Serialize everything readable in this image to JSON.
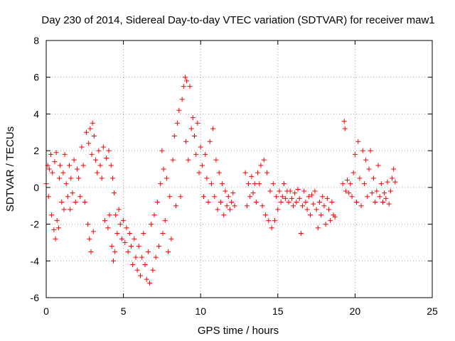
{
  "chart_data": {
    "type": "scatter",
    "title": "Day 230 of 2014, Sidereal Day-to-day VTEC variation (SDTVAR) for receiver maw1",
    "xlabel": "GPS time / hours",
    "ylabel": "SDTVAR / TECUs",
    "xlim": [
      0,
      25
    ],
    "ylim": [
      -6,
      8
    ],
    "xticks": [
      0,
      5,
      10,
      15,
      20,
      25
    ],
    "yticks": [
      -6,
      -4,
      -2,
      0,
      2,
      4,
      6,
      8
    ],
    "grid": true,
    "marker": "+",
    "color": "#ff0000",
    "series": [
      {
        "name": "maw1",
        "points": [
          [
            0.0,
            0.2
          ],
          [
            0.1,
            1.2
          ],
          [
            0.15,
            -0.5
          ],
          [
            0.2,
            1.0
          ],
          [
            0.3,
            1.8
          ],
          [
            0.35,
            -1.5
          ],
          [
            0.4,
            0.8
          ],
          [
            0.5,
            -2.3
          ],
          [
            0.55,
            1.4
          ],
          [
            0.6,
            -2.8
          ],
          [
            0.65,
            1.9
          ],
          [
            0.7,
            -1.8
          ],
          [
            0.8,
            -2.2
          ],
          [
            0.85,
            0.5
          ],
          [
            0.9,
            1.2
          ],
          [
            1.0,
            -0.8
          ],
          [
            1.1,
            0.8
          ],
          [
            1.15,
            -1.2
          ],
          [
            1.2,
            1.8
          ],
          [
            1.3,
            0.2
          ],
          [
            1.4,
            -0.5
          ],
          [
            1.5,
            1.2
          ],
          [
            1.55,
            -1.2
          ],
          [
            1.6,
            0.5
          ],
          [
            1.7,
            -0.3
          ],
          [
            1.8,
            1.5
          ],
          [
            1.9,
            -0.8
          ],
          [
            2.0,
            1.0
          ],
          [
            2.1,
            0.5
          ],
          [
            2.2,
            -0.5
          ],
          [
            2.3,
            2.2
          ],
          [
            2.4,
            1.2
          ],
          [
            2.5,
            -0.8
          ],
          [
            2.6,
            3.0
          ],
          [
            2.7,
            -2.0
          ],
          [
            2.75,
            2.4
          ],
          [
            2.8,
            -2.8
          ],
          [
            2.85,
            3.2
          ],
          [
            2.9,
            -3.5
          ],
          [
            2.95,
            1.8
          ],
          [
            3.0,
            3.5
          ],
          [
            3.05,
            -2.4
          ],
          [
            3.1,
            2.8
          ],
          [
            3.2,
            1.5
          ],
          [
            3.3,
            0.8
          ],
          [
            3.4,
            2.0
          ],
          [
            3.5,
            1.2
          ],
          [
            3.6,
            0.5
          ],
          [
            3.7,
            2.2
          ],
          [
            3.8,
            -1.8
          ],
          [
            3.9,
            1.6
          ],
          [
            4.0,
            -2.2
          ],
          [
            4.05,
            2.0
          ],
          [
            4.1,
            -1.5
          ],
          [
            4.2,
            1.2
          ],
          [
            4.25,
            -3.2
          ],
          [
            4.3,
            0.5
          ],
          [
            4.35,
            -4.0
          ],
          [
            4.4,
            -0.3
          ],
          [
            4.45,
            -3.5
          ],
          [
            4.5,
            -1.5
          ],
          [
            4.6,
            -2.5
          ],
          [
            4.7,
            -1.2
          ],
          [
            4.8,
            -2.0
          ],
          [
            4.9,
            -2.8
          ],
          [
            5.0,
            -1.8
          ],
          [
            5.1,
            -3.0
          ],
          [
            5.2,
            -2.2
          ],
          [
            5.3,
            -3.5
          ],
          [
            5.4,
            -2.5
          ],
          [
            5.5,
            -3.2
          ],
          [
            5.6,
            -4.2
          ],
          [
            5.7,
            -2.8
          ],
          [
            5.8,
            -3.8
          ],
          [
            5.9,
            -4.5
          ],
          [
            6.0,
            -3.2
          ],
          [
            6.1,
            -4.8
          ],
          [
            6.2,
            -3.8
          ],
          [
            6.3,
            -2.5
          ],
          [
            6.4,
            -4.2
          ],
          [
            6.5,
            -5.0
          ],
          [
            6.6,
            -3.5
          ],
          [
            6.7,
            -5.2
          ],
          [
            6.8,
            -2.0
          ],
          [
            6.9,
            -4.5
          ],
          [
            7.0,
            -1.5
          ],
          [
            7.1,
            -3.8
          ],
          [
            7.2,
            -0.8
          ],
          [
            7.3,
            -3.2
          ],
          [
            7.4,
            0.2
          ],
          [
            7.5,
            2.0
          ],
          [
            7.55,
            -2.5
          ],
          [
            7.6,
            1.0
          ],
          [
            7.7,
            -1.8
          ],
          [
            7.8,
            0.5
          ],
          [
            7.9,
            -3.5
          ],
          [
            8.0,
            -0.5
          ],
          [
            8.1,
            -2.8
          ],
          [
            8.2,
            1.5
          ],
          [
            8.3,
            2.8
          ],
          [
            8.4,
            -1.0
          ],
          [
            8.5,
            3.5
          ],
          [
            8.6,
            4.2
          ],
          [
            8.7,
            -0.5
          ],
          [
            8.8,
            4.8
          ],
          [
            8.9,
            5.5
          ],
          [
            9.0,
            6.0
          ],
          [
            9.05,
            2.5
          ],
          [
            9.1,
            5.8
          ],
          [
            9.2,
            1.5
          ],
          [
            9.3,
            5.5
          ],
          [
            9.4,
            3.2
          ],
          [
            9.5,
            3.8
          ],
          [
            9.6,
            2.8
          ],
          [
            9.7,
            1.8
          ],
          [
            9.8,
            3.5
          ],
          [
            9.9,
            0.8
          ],
          [
            10.0,
            2.2
          ],
          [
            10.1,
            1.2
          ],
          [
            10.2,
            -0.5
          ],
          [
            10.3,
            1.8
          ],
          [
            10.4,
            0.5
          ],
          [
            10.5,
            -0.8
          ],
          [
            10.6,
            2.5
          ],
          [
            10.7,
            0.2
          ],
          [
            10.8,
            3.2
          ],
          [
            10.9,
            -0.5
          ],
          [
            11.0,
            1.5
          ],
          [
            11.1,
            -1.2
          ],
          [
            11.2,
            0.8
          ],
          [
            11.3,
            -0.8
          ],
          [
            11.4,
            0.2
          ],
          [
            11.5,
            -1.5
          ],
          [
            11.6,
            -0.2
          ],
          [
            11.7,
            -1.0
          ],
          [
            11.8,
            -0.5
          ],
          [
            11.9,
            -1.2
          ],
          [
            12.0,
            -0.8
          ],
          [
            12.1,
            -0.3
          ],
          [
            12.2,
            -1.0
          ],
          [
            12.9,
            0.8
          ],
          [
            13.0,
            -1.0
          ],
          [
            13.1,
            0.2
          ],
          [
            13.2,
            -0.5
          ],
          [
            13.3,
            0.6
          ],
          [
            13.4,
            -0.3
          ],
          [
            13.5,
            0.2
          ],
          [
            13.6,
            -0.8
          ],
          [
            13.7,
            0.8
          ],
          [
            13.8,
            0.2
          ],
          [
            13.9,
            1.2
          ],
          [
            14.0,
            -1.0
          ],
          [
            14.1,
            1.5
          ],
          [
            14.2,
            -1.5
          ],
          [
            14.3,
            0.8
          ],
          [
            14.4,
            -1.8
          ],
          [
            14.5,
            -0.2
          ],
          [
            14.6,
            -2.2
          ],
          [
            14.7,
            0.2
          ],
          [
            14.8,
            -1.8
          ],
          [
            14.9,
            -0.5
          ],
          [
            15.0,
            -1.2
          ],
          [
            15.1,
            -0.2
          ],
          [
            15.2,
            -0.8
          ],
          [
            15.3,
            -0.5
          ],
          [
            15.4,
            0.2
          ],
          [
            15.5,
            -0.6
          ],
          [
            15.6,
            -0.2
          ],
          [
            15.7,
            -0.8
          ],
          [
            15.8,
            -0.2
          ],
          [
            15.9,
            -0.6
          ],
          [
            16.0,
            -1.0
          ],
          [
            16.1,
            -0.3
          ],
          [
            16.2,
            -0.8
          ],
          [
            16.3,
            -0.1
          ],
          [
            16.4,
            -0.6
          ],
          [
            16.5,
            -2.5
          ],
          [
            16.6,
            -1.0
          ],
          [
            16.7,
            -0.2
          ],
          [
            16.8,
            -0.8
          ],
          [
            16.9,
            -1.2
          ],
          [
            17.0,
            -0.5
          ],
          [
            17.1,
            -1.5
          ],
          [
            17.2,
            -0.4
          ],
          [
            17.3,
            -0.9
          ],
          [
            17.4,
            -0.2
          ],
          [
            17.5,
            -1.2
          ],
          [
            17.6,
            -2.2
          ],
          [
            17.7,
            -0.8
          ],
          [
            17.8,
            -1.5
          ],
          [
            17.9,
            -0.5
          ],
          [
            18.0,
            -1.0
          ],
          [
            18.1,
            -2.0
          ],
          [
            18.2,
            -0.6
          ],
          [
            18.3,
            -1.2
          ],
          [
            18.4,
            -1.8
          ],
          [
            18.5,
            -0.8
          ],
          [
            18.6,
            -1.5
          ],
          [
            18.7,
            -1.6
          ],
          [
            19.2,
            0.2
          ],
          [
            19.3,
            3.6
          ],
          [
            19.35,
            3.2
          ],
          [
            19.4,
            -0.2
          ],
          [
            19.5,
            0.4
          ],
          [
            19.6,
            -0.3
          ],
          [
            19.7,
            0.2
          ],
          [
            19.8,
            -0.5
          ],
          [
            19.9,
            0.8
          ],
          [
            20.0,
            1.8
          ],
          [
            20.1,
            -0.8
          ],
          [
            20.2,
            2.5
          ],
          [
            20.3,
            0.5
          ],
          [
            20.4,
            -1.0
          ],
          [
            20.5,
            2.0
          ],
          [
            20.6,
            0.2
          ],
          [
            20.7,
            1.5
          ],
          [
            20.8,
            -0.5
          ],
          [
            20.9,
            1.0
          ],
          [
            21.0,
            2.0
          ],
          [
            21.1,
            -0.3
          ],
          [
            21.2,
            0.5
          ],
          [
            21.3,
            -0.8
          ],
          [
            21.4,
            -0.2
          ],
          [
            21.5,
            1.2
          ],
          [
            21.6,
            -0.5
          ],
          [
            21.7,
            0.2
          ],
          [
            21.8,
            -0.8
          ],
          [
            21.9,
            -0.3
          ],
          [
            22.0,
            -0.6
          ],
          [
            22.1,
            0.3
          ],
          [
            22.2,
            -0.9
          ],
          [
            22.3,
            -0.2
          ],
          [
            22.4,
            0.5
          ],
          [
            22.5,
            1.0
          ],
          [
            22.6,
            0.3
          ]
        ]
      }
    ]
  }
}
